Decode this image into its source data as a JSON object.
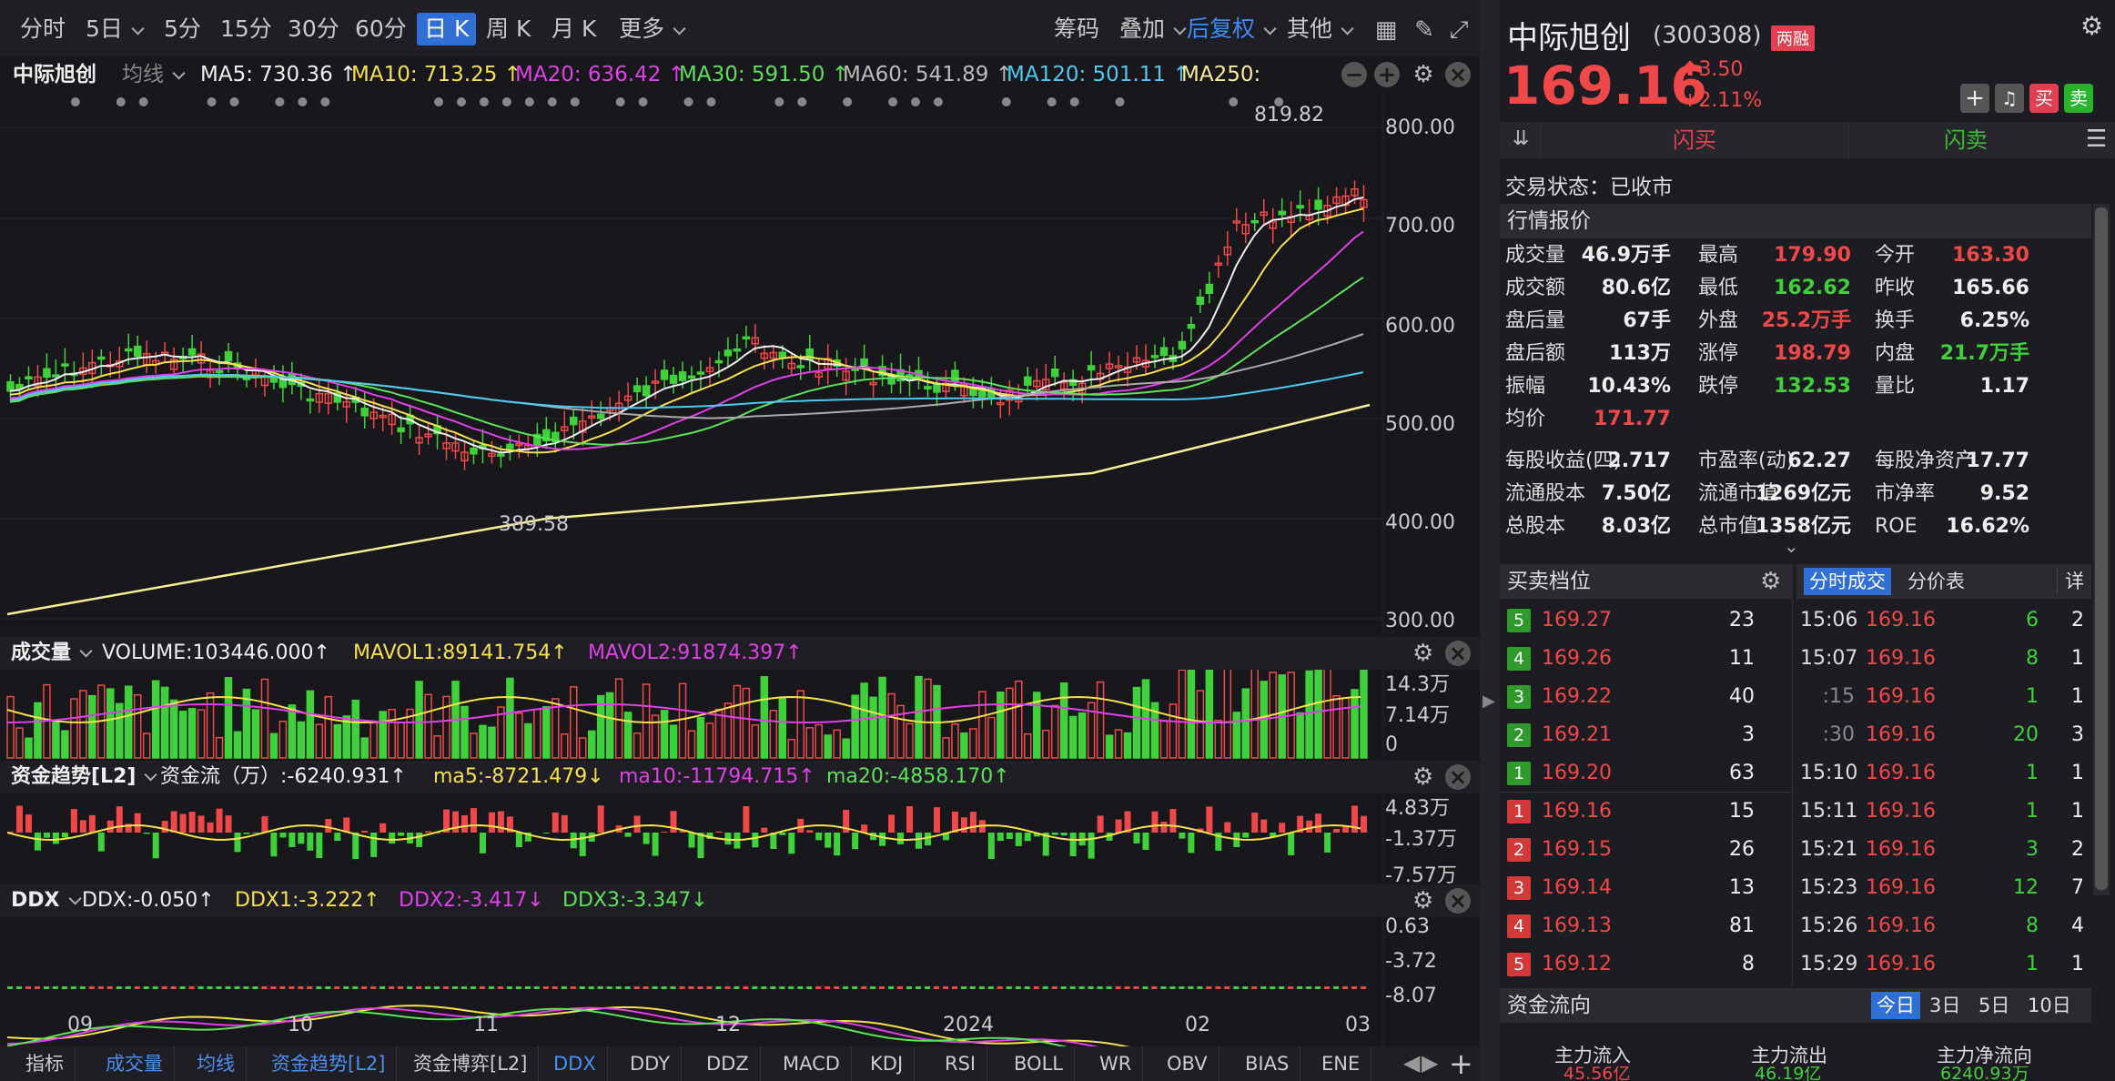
{
  "periods": [
    "分时",
    "5日",
    "5分",
    "15分",
    "30分",
    "60分",
    "日 K",
    "周 K",
    "月 K",
    "更多"
  ],
  "toolbar": {
    "chip": "筹码",
    "overlay": "叠加",
    "adjust": "后复权",
    "other": "其他"
  },
  "ma": {
    "name": "中际旭创",
    "type": "均线",
    "ma5": "MA5: 730.36 ↑",
    "ma10": "MA10: 713.25 ↑",
    "ma20": "MA20: 636.42 ↑",
    "ma30": "MA30: 591.50 ↑",
    "ma60": "MA60: 541.89 ↑",
    "ma120": "MA120: 501.11 ↑",
    "ma250": "MA250:"
  },
  "price_axis": [
    "800.00",
    "700.00",
    "600.00",
    "500.00",
    "400.00",
    "300.00"
  ],
  "annotations": {
    "high": "819.82",
    "low": "389.58"
  },
  "volume": {
    "title": "成交量",
    "v": "VOLUME:103446.000↑",
    "m1": "MAVOL1:89141.754↑",
    "m2": "MAVOL2:91874.397↑",
    "axis": [
      "14.3万",
      "7.14万",
      "0"
    ]
  },
  "flow": {
    "title": "资金趋势[L2]",
    "v": "资金流（万）:-6240.931↑",
    "m5": "ma5:-8721.479↓",
    "m10": "ma10:-11794.715↑",
    "m20": "ma20:-4858.170↑",
    "axis": [
      "4.83万",
      "-1.37万",
      "-7.57万"
    ]
  },
  "ddx": {
    "title": "DDX",
    "v": "DDX:-0.050↑",
    "d1": "DDX1:-3.222↑",
    "d2": "DDX2:-3.417↓",
    "d3": "DDX3:-3.347↓",
    "axis": [
      "0.63",
      "-3.72",
      "-8.07"
    ]
  },
  "xaxis": [
    "09",
    "10",
    "11",
    "12",
    "2024",
    "02",
    "03"
  ],
  "bottom_tabs": [
    "指标",
    "成交量",
    "均线",
    "资金趋势[L2]",
    "资金博弈[L2]",
    "DDX",
    "DDY",
    "DDZ",
    "MACD",
    "KDJ",
    "RSI",
    "BOLL",
    "WR",
    "OBV",
    "BIAS",
    "ENE"
  ],
  "quote": {
    "name": "中际旭创",
    "code": "(300308)",
    "tag": "两融",
    "price": "169.16",
    "chg": "3.50",
    "pct": "+2.11%",
    "buy": "买",
    "sell": "卖",
    "flash_buy": "闪买",
    "flash_sell": "闪卖",
    "status": "交易状态：已收市",
    "section": "行情报价"
  },
  "stats": [
    [
      "成交量",
      "46.9万手",
      "最高",
      "179.90",
      "今开",
      "163.30"
    ],
    [
      "成交额",
      "80.6亿",
      "最低",
      "162.62",
      "昨收",
      "165.66"
    ],
    [
      "盘后量",
      "67手",
      "外盘",
      "25.2万手",
      "换手",
      "6.25%"
    ],
    [
      "盘后额",
      "113万",
      "涨停",
      "198.79",
      "内盘",
      "21.7万手"
    ],
    [
      "振幅",
      "10.43%",
      "跌停",
      "132.53",
      "量比",
      "1.17"
    ],
    [
      "均价",
      "171.77",
      "",
      "",
      "",
      ""
    ],
    [
      "每股收益(四)",
      "2.717",
      "市盈率(动)",
      "62.27",
      "每股净资产",
      "17.77"
    ],
    [
      "流通股本",
      "7.50亿",
      "流通市值",
      "1269亿元",
      "市净率",
      "9.52"
    ],
    [
      "总股本",
      "8.03亿",
      "总市值",
      "1358亿元",
      "ROE",
      "16.62%"
    ]
  ],
  "orderbook": {
    "title": "买卖档位",
    "tabs": [
      "分时成交",
      "分价表",
      "详"
    ],
    "asks": [
      [
        "5",
        "169.27",
        "23"
      ],
      [
        "4",
        "169.26",
        "11"
      ],
      [
        "3",
        "169.22",
        "40"
      ],
      [
        "2",
        "169.21",
        "3"
      ],
      [
        "1",
        "169.20",
        "63"
      ]
    ],
    "bids": [
      [
        "1",
        "169.16",
        "15"
      ],
      [
        "2",
        "169.15",
        "26"
      ],
      [
        "3",
        "169.14",
        "13"
      ],
      [
        "4",
        "169.13",
        "81"
      ],
      [
        "5",
        "169.12",
        "8"
      ]
    ]
  },
  "trades": [
    [
      "15:06",
      "169.16",
      "6",
      "2"
    ],
    [
      "15:07",
      "169.16",
      "8",
      "1"
    ],
    [
      ":15",
      "169.16",
      "1",
      "1"
    ],
    [
      ":30",
      "169.16",
      "20",
      "3"
    ],
    [
      "15:10",
      "169.16",
      "1",
      "1"
    ],
    [
      "15:11",
      "169.16",
      "1",
      "1"
    ],
    [
      "15:21",
      "169.16",
      "3",
      "2"
    ],
    [
      "15:23",
      "169.16",
      "12",
      "7"
    ],
    [
      "15:26",
      "169.16",
      "8",
      "4"
    ],
    [
      "15:29",
      "169.16",
      "1",
      "1"
    ]
  ],
  "fund_flow": {
    "title": "资金流向",
    "periods": [
      "今日",
      "3日",
      "5日",
      "10日"
    ],
    "cols": [
      "主力流入",
      "主力流出",
      "主力净流向"
    ],
    "vals": [
      "45.56亿",
      "46.19亿",
      "6240.93万"
    ]
  },
  "colors": {
    "up": "#f04848",
    "down": "#3fd13a",
    "accent": "#2f6fd6"
  }
}
